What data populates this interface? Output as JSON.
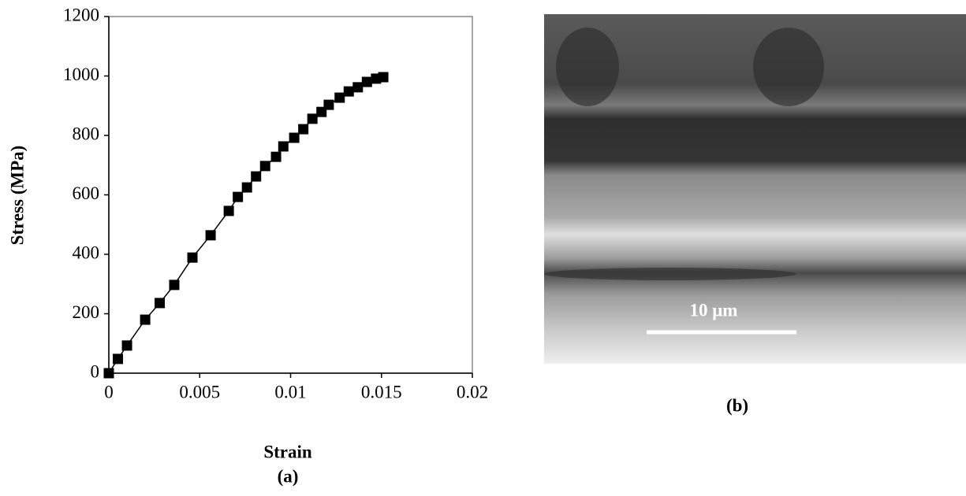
{
  "chart_data": {
    "type": "line",
    "x_label": "Strain",
    "y_label": "Stress (MPa)",
    "x": [
      0,
      0.0005,
      0.001,
      0.002,
      0.0028,
      0.0036,
      0.0046,
      0.0056,
      0.0066,
      0.0071,
      0.0076,
      0.0081,
      0.0086,
      0.0092,
      0.0096,
      0.0102,
      0.0107,
      0.0112,
      0.0117,
      0.0121,
      0.0127,
      0.0132,
      0.0137,
      0.0142,
      0.0147,
      0.0151
    ],
    "series": [
      {
        "color": "#000000",
        "values": [
          0,
          48,
          93,
          180,
          236,
          297,
          389,
          464,
          546,
          593,
          625,
          662,
          697,
          728,
          763,
          792,
          821,
          856,
          879,
          903,
          927,
          948,
          962,
          980,
          991,
          996
        ]
      }
    ],
    "xlim": [
      0,
      0.02
    ],
    "xticks": [
      0,
      0.005,
      0.01,
      0.015,
      0.02
    ],
    "ylim": [
      0,
      1200
    ],
    "yticks": [
      0,
      200,
      400,
      600,
      800,
      1000,
      1200
    ],
    "grid": false
  },
  "panel_labels": [
    "(a)",
    "(b)"
  ],
  "micrograph": {
    "scale_bar_label": "10 μm"
  }
}
